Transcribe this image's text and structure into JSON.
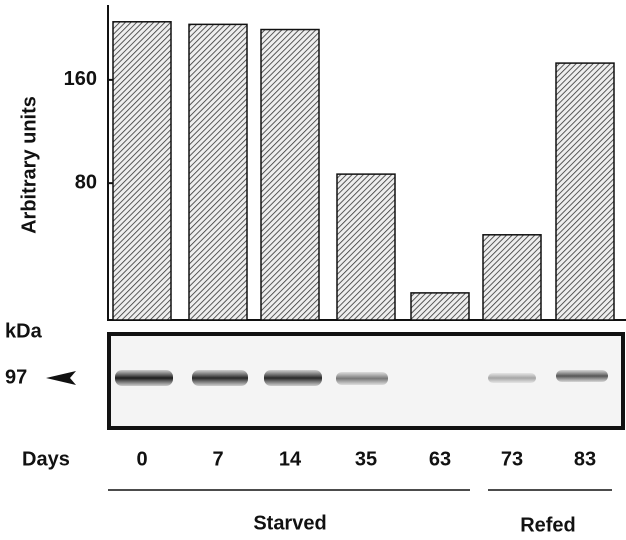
{
  "chart_data": {
    "type": "bar",
    "ylabel": "Arbitrary units",
    "xlabel": "Days",
    "categories": [
      "0",
      "7",
      "14",
      "35",
      "63",
      "73",
      "83"
    ],
    "values": [
      205,
      203,
      199,
      87,
      -5,
      40,
      173
    ],
    "color": "#333333",
    "ylim": [
      -26,
      218
    ],
    "yticks": [
      80,
      160
    ],
    "groups": [
      {
        "name": "Starved"
      },
      {
        "name": "Refed"
      }
    ],
    "blot": {
      "unit_label": "kDa",
      "marker": 97
    }
  }
}
